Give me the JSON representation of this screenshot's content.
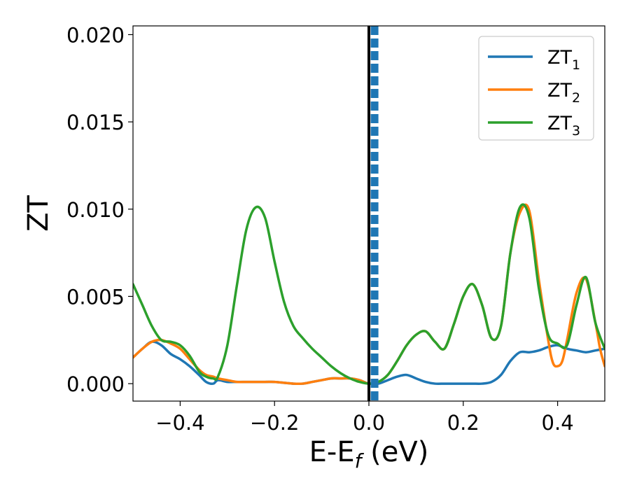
{
  "chart_data": {
    "type": "line",
    "xlabel": {
      "main": "E-E",
      "sub": "f",
      "suffix": " (eV)"
    },
    "ylabel": "ZT",
    "xlim": [
      -0.5,
      0.5
    ],
    "ylim": [
      -0.001,
      0.0205
    ],
    "xticks": [
      {
        "value": -0.4,
        "label": "−0.4"
      },
      {
        "value": -0.2,
        "label": "−0.2"
      },
      {
        "value": 0.0,
        "label": "0.0"
      },
      {
        "value": 0.2,
        "label": "0.2"
      },
      {
        "value": 0.4,
        "label": "0.4"
      }
    ],
    "yticks": [
      {
        "value": 0.0,
        "label": "0.000"
      },
      {
        "value": 0.005,
        "label": "0.005"
      },
      {
        "value": 0.01,
        "label": "0.010"
      },
      {
        "value": 0.015,
        "label": "0.015"
      },
      {
        "value": 0.02,
        "label": "0.020"
      }
    ],
    "grid": false,
    "legend_position": "top-right",
    "vertical_lines": [
      {
        "x": 0.0,
        "color": "#000000",
        "style": "solid"
      },
      {
        "x": 0.012,
        "color": "#1f77b4",
        "style": "dashed"
      }
    ],
    "series": [
      {
        "name": "ZT",
        "sub": "1",
        "color": "#1f77b4",
        "x": [
          -0.5,
          -0.48,
          -0.46,
          -0.44,
          -0.42,
          -0.4,
          -0.38,
          -0.36,
          -0.345,
          -0.33,
          -0.32,
          -0.3,
          -0.28,
          -0.26,
          -0.24,
          -0.22,
          -0.2,
          -0.18,
          -0.16,
          -0.14,
          -0.12,
          -0.1,
          -0.08,
          -0.06,
          -0.04,
          -0.02,
          0.0,
          0.02,
          0.04,
          0.06,
          0.08,
          0.1,
          0.12,
          0.14,
          0.16,
          0.18,
          0.2,
          0.22,
          0.24,
          0.26,
          0.28,
          0.3,
          0.32,
          0.34,
          0.36,
          0.38,
          0.4,
          0.42,
          0.44,
          0.46,
          0.48,
          0.5
        ],
        "y": [
          0.0015,
          0.002,
          0.0024,
          0.0022,
          0.0017,
          0.0014,
          0.001,
          0.0005,
          0.0001,
          0.0,
          0.0002,
          0.0001,
          0.0001,
          0.0001,
          0.0001,
          0.0001,
          0.0001,
          5e-05,
          0.0,
          0.0,
          0.0001,
          0.0002,
          0.0003,
          0.0003,
          0.0003,
          0.0002,
          0.0,
          0.0,
          0.0002,
          0.0004,
          0.0005,
          0.0003,
          0.0001,
          0.0,
          0.0,
          0.0,
          0.0,
          0.0,
          0.0,
          0.0001,
          0.0005,
          0.0013,
          0.0018,
          0.0018,
          0.0019,
          0.0021,
          0.0022,
          0.002,
          0.0019,
          0.0018,
          0.0019,
          0.002
        ]
      },
      {
        "name": "ZT",
        "sub": "2",
        "color": "#ff7f0e",
        "x": [
          -0.5,
          -0.48,
          -0.46,
          -0.44,
          -0.42,
          -0.4,
          -0.38,
          -0.36,
          -0.345,
          -0.33,
          -0.32,
          -0.3,
          -0.28,
          -0.26,
          -0.24,
          -0.22,
          -0.2,
          -0.18,
          -0.16,
          -0.14,
          -0.12,
          -0.1,
          -0.08,
          -0.06,
          -0.04,
          -0.02,
          0.0,
          0.02,
          0.04,
          0.06,
          0.08,
          0.1,
          0.12,
          0.14,
          0.16,
          0.18,
          0.2,
          0.22,
          0.24,
          0.26,
          0.28,
          0.3,
          0.32,
          0.34,
          0.36,
          0.38,
          0.39,
          0.4,
          0.41,
          0.42,
          0.44,
          0.46,
          0.48,
          0.49,
          0.5
        ],
        "y": [
          0.0015,
          0.002,
          0.0024,
          0.0025,
          0.0023,
          0.002,
          0.0014,
          0.0008,
          0.0005,
          0.0004,
          0.0003,
          0.0002,
          0.0001,
          0.0001,
          0.0001,
          0.0001,
          0.0001,
          5e-05,
          0.0,
          0.0,
          0.0001,
          0.0002,
          0.0003,
          0.0003,
          0.0003,
          0.0002,
          0.0,
          0.0001,
          0.0005,
          0.0013,
          0.0022,
          0.0028,
          0.003,
          0.0024,
          0.002,
          0.0034,
          0.005,
          0.0057,
          0.0045,
          0.0026,
          0.0033,
          0.0075,
          0.0098,
          0.0099,
          0.006,
          0.0025,
          0.0012,
          0.001,
          0.0013,
          0.0025,
          0.0052,
          0.006,
          0.0035,
          0.002,
          0.001
        ]
      },
      {
        "name": "ZT",
        "sub": "3",
        "color": "#2ca02c",
        "x": [
          -0.5,
          -0.48,
          -0.46,
          -0.44,
          -0.42,
          -0.4,
          -0.38,
          -0.36,
          -0.345,
          -0.33,
          -0.32,
          -0.3,
          -0.28,
          -0.26,
          -0.24,
          -0.22,
          -0.2,
          -0.18,
          -0.16,
          -0.14,
          -0.12,
          -0.1,
          -0.08,
          -0.06,
          -0.04,
          -0.02,
          0.0,
          0.02,
          0.04,
          0.06,
          0.08,
          0.1,
          0.12,
          0.14,
          0.16,
          0.18,
          0.2,
          0.22,
          0.24,
          0.26,
          0.28,
          0.3,
          0.32,
          0.34,
          0.36,
          0.38,
          0.4,
          0.42,
          0.44,
          0.46,
          0.48,
          0.5
        ],
        "y": [
          0.0057,
          0.0045,
          0.0033,
          0.0025,
          0.0024,
          0.0022,
          0.0016,
          0.0007,
          0.0004,
          0.0003,
          0.0004,
          0.0022,
          0.0056,
          0.0088,
          0.0101,
          0.0095,
          0.007,
          0.0047,
          0.0033,
          0.0026,
          0.002,
          0.0015,
          0.001,
          0.0006,
          0.0003,
          0.0001,
          0.0,
          0.0001,
          0.0005,
          0.0013,
          0.0022,
          0.0028,
          0.003,
          0.0024,
          0.002,
          0.0034,
          0.005,
          0.0057,
          0.0045,
          0.0026,
          0.0033,
          0.0075,
          0.0101,
          0.0095,
          0.0055,
          0.0028,
          0.0023,
          0.0022,
          0.0045,
          0.0061,
          0.0035,
          0.002
        ]
      }
    ]
  }
}
